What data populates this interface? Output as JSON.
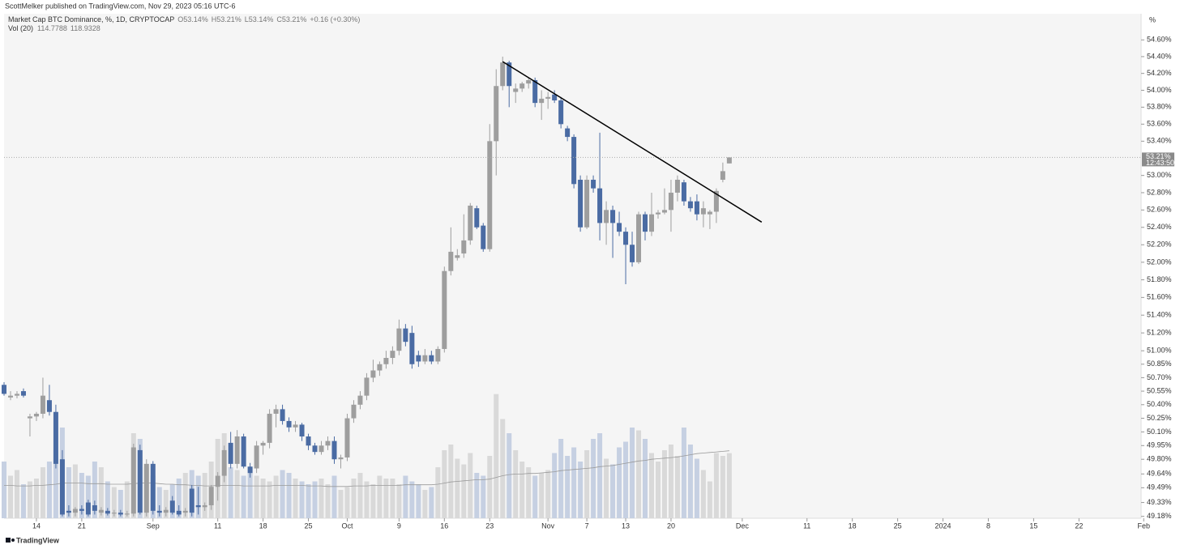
{
  "header": {
    "publisher": "ScottMelker published on TradingView.com, Nov 29, 2023 05:16 UTC-6",
    "brand": "TradingView"
  },
  "chart_data": {
    "type": "candlestick",
    "title": "Market Cap BTC Dominance, %, 1D, CRYPTOCAP",
    "legend_ohlc": [
      "O53.14%",
      "H53.21%",
      "L53.14%",
      "C53.21%",
      "+0.16 (+0.30%)"
    ],
    "volume_legend": {
      "name": "Vol (20)",
      "values": [
        "114.7788",
        "118.9328"
      ]
    },
    "y_unit": "%",
    "log": true,
    "up_color": "#9e9e9e",
    "down_color": "#4a6ba3",
    "volume_up_color": "#d9d9d9",
    "volume_down_color": "#c6d0e2",
    "ma_color": "#9a9a9a",
    "x": [
      "2023-08-09",
      "2023-08-10",
      "2023-08-11",
      "2023-08-12",
      "2023-08-13",
      "2023-08-14",
      "2023-08-15",
      "2023-08-16",
      "2023-08-17",
      "2023-08-18",
      "2023-08-19",
      "2023-08-20",
      "2023-08-21",
      "2023-08-22",
      "2023-08-23",
      "2023-08-24",
      "2023-08-25",
      "2023-08-26",
      "2023-08-27",
      "2023-08-28",
      "2023-08-29",
      "2023-08-30",
      "2023-08-31",
      "2023-09-01",
      "2023-09-02",
      "2023-09-03",
      "2023-09-04",
      "2023-09-05",
      "2023-09-06",
      "2023-09-07",
      "2023-09-08",
      "2023-09-09",
      "2023-09-10",
      "2023-09-11",
      "2023-09-12",
      "2023-09-13",
      "2023-09-14",
      "2023-09-15",
      "2023-09-16",
      "2023-09-17",
      "2023-09-18",
      "2023-09-19",
      "2023-09-20",
      "2023-09-21",
      "2023-09-22",
      "2023-09-23",
      "2023-09-24",
      "2023-09-25",
      "2023-09-26",
      "2023-09-27",
      "2023-09-28",
      "2023-09-29",
      "2023-09-30",
      "2023-10-01",
      "2023-10-02",
      "2023-10-03",
      "2023-10-04",
      "2023-10-05",
      "2023-10-06",
      "2023-10-07",
      "2023-10-08",
      "2023-10-09",
      "2023-10-10",
      "2023-10-11",
      "2023-10-12",
      "2023-10-13",
      "2023-10-14",
      "2023-10-15",
      "2023-10-16",
      "2023-10-17",
      "2023-10-18",
      "2023-10-19",
      "2023-10-20",
      "2023-10-21",
      "2023-10-22",
      "2023-10-23",
      "2023-10-24",
      "2023-10-25",
      "2023-10-26",
      "2023-10-27",
      "2023-10-28",
      "2023-10-29",
      "2023-10-30",
      "2023-10-31",
      "2023-11-01",
      "2023-11-02",
      "2023-11-03",
      "2023-11-04",
      "2023-11-05",
      "2023-11-06",
      "2023-11-07",
      "2023-11-08",
      "2023-11-09",
      "2023-11-10",
      "2023-11-11",
      "2023-11-12",
      "2023-11-13",
      "2023-11-14",
      "2023-11-15",
      "2023-11-16",
      "2023-11-17",
      "2023-11-18",
      "2023-11-19",
      "2023-11-20",
      "2023-11-21",
      "2023-11-22",
      "2023-11-23",
      "2023-11-24",
      "2023-11-25",
      "2023-11-26",
      "2023-11-27",
      "2023-11-28",
      "2023-11-29"
    ],
    "open": [
      50.62,
      50.48,
      50.5,
      50.55,
      50.25,
      50.27,
      50.3,
      50.45,
      50.32,
      49.8,
      49.24,
      49.22,
      49.26,
      49.33,
      49.3,
      49.22,
      49.24,
      49.21,
      49.22,
      49.2,
      49.21,
      49.9,
      49.22,
      49.75,
      49.24,
      49.22,
      49.35,
      49.24,
      49.22,
      49.48,
      49.3,
      49.28,
      49.3,
      49.5,
      49.62,
      49.98,
      49.75,
      50.05,
      49.72,
      49.7,
      49.95,
      49.98,
      50.3,
      50.35,
      50.22,
      50.15,
      50.18,
      50.05,
      49.95,
      49.88,
      49.95,
      50.0,
      49.8,
      49.82,
      50.25,
      50.4,
      50.5,
      50.7,
      50.78,
      50.85,
      50.92,
      51.0,
      51.25,
      51.2,
      50.95,
      50.88,
      50.95,
      50.88,
      51.02,
      51.9,
      52.05,
      52.1,
      52.25,
      52.62,
      52.42,
      52.15,
      53.4,
      54.05,
      54.33,
      53.98,
      54.02,
      54.08,
      54.12,
      53.85,
      53.9,
      53.95,
      53.88,
      53.55,
      53.45,
      52.95,
      52.4,
      52.95,
      52.85,
      52.45,
      52.6,
      52.45,
      52.35,
      52.2,
      52.0,
      52.55,
      52.35,
      52.55,
      52.57,
      52.6,
      52.8,
      52.92,
      52.7,
      52.7,
      52.55,
      52.55,
      52.58,
      52.95,
      53.14
    ],
    "high": [
      50.65,
      50.55,
      50.55,
      50.58,
      50.3,
      50.32,
      50.7,
      50.62,
      50.4,
      49.9,
      49.3,
      49.28,
      49.3,
      49.36,
      49.35,
      49.28,
      49.27,
      49.25,
      49.25,
      49.24,
      49.97,
      49.96,
      49.8,
      49.78,
      49.3,
      49.28,
      49.4,
      49.3,
      49.27,
      49.52,
      49.5,
      49.33,
      49.52,
      49.66,
      49.95,
      50.1,
      50.12,
      50.08,
      49.76,
      50.0,
      50.0,
      50.35,
      50.4,
      50.4,
      50.26,
      50.22,
      50.2,
      50.08,
      49.98,
      50.0,
      50.05,
      50.05,
      49.85,
      50.3,
      50.45,
      50.55,
      50.75,
      50.9,
      50.88,
      51.0,
      51.05,
      51.35,
      51.3,
      51.28,
      51.0,
      51.02,
      51.0,
      51.05,
      51.95,
      52.4,
      52.15,
      52.55,
      52.68,
      52.65,
      52.45,
      53.6,
      54.25,
      54.4,
      54.35,
      54.08,
      54.1,
      54.15,
      54.15,
      54.0,
      53.98,
      54.0,
      53.92,
      53.58,
      53.48,
      53.0,
      53.0,
      53.0,
      53.5,
      52.7,
      52.65,
      52.58,
      52.4,
      52.35,
      52.58,
      52.58,
      52.8,
      52.6,
      52.85,
      52.95,
      53.0,
      52.95,
      52.75,
      52.78,
      52.7,
      52.6,
      52.85,
      53.15,
      53.21
    ],
    "low": [
      50.5,
      50.45,
      50.47,
      50.48,
      50.05,
      50.22,
      50.25,
      50.28,
      49.7,
      49.18,
      49.18,
      49.18,
      49.2,
      49.18,
      49.2,
      49.19,
      49.19,
      49.18,
      49.18,
      49.18,
      49.18,
      49.2,
      49.18,
      49.2,
      49.18,
      49.18,
      49.2,
      49.18,
      49.18,
      49.18,
      49.2,
      49.24,
      49.25,
      49.35,
      49.55,
      49.7,
      49.7,
      49.7,
      49.6,
      49.65,
      49.85,
      49.92,
      50.15,
      50.18,
      50.1,
      50.1,
      50.0,
      49.9,
      49.85,
      49.85,
      49.9,
      49.75,
      49.7,
      49.78,
      50.2,
      50.35,
      50.45,
      50.65,
      50.72,
      50.8,
      50.85,
      50.95,
      51.05,
      50.8,
      50.82,
      50.85,
      50.85,
      50.85,
      50.98,
      51.85,
      52.02,
      52.05,
      52.2,
      52.38,
      52.12,
      52.12,
      53.0,
      54.0,
      53.8,
      53.85,
      53.98,
      54.02,
      53.8,
      53.65,
      53.78,
      53.85,
      53.55,
      53.4,
      52.85,
      52.35,
      52.38,
      52.8,
      52.25,
      52.2,
      52.05,
      52.3,
      51.75,
      51.95,
      51.98,
      52.25,
      52.3,
      52.5,
      52.55,
      52.35,
      52.7,
      52.65,
      52.58,
      52.48,
      52.4,
      52.38,
      52.45,
      52.92,
      53.14
    ],
    "close": [
      50.52,
      50.5,
      50.52,
      50.5,
      50.27,
      50.3,
      50.5,
      50.32,
      49.75,
      49.2,
      49.22,
      49.26,
      49.24,
      49.2,
      49.24,
      49.25,
      49.21,
      49.22,
      49.2,
      49.21,
      49.93,
      49.22,
      49.75,
      49.24,
      49.22,
      49.25,
      49.22,
      49.2,
      49.24,
      49.22,
      49.28,
      49.3,
      49.5,
      49.62,
      49.9,
      49.75,
      50.05,
      49.72,
      49.65,
      49.95,
      49.98,
      50.3,
      50.35,
      50.22,
      50.15,
      50.18,
      50.05,
      49.95,
      49.88,
      49.95,
      50.0,
      49.8,
      49.82,
      50.25,
      50.4,
      50.5,
      50.7,
      50.78,
      50.85,
      50.92,
      51.0,
      51.25,
      51.1,
      50.85,
      50.88,
      50.95,
      50.88,
      51.02,
      51.9,
      52.12,
      52.08,
      52.25,
      52.65,
      52.4,
      52.15,
      53.4,
      54.05,
      54.33,
      54.05,
      54.02,
      54.08,
      54.12,
      53.85,
      53.9,
      53.92,
      53.88,
      53.6,
      53.45,
      52.9,
      52.4,
      52.95,
      52.85,
      52.45,
      52.6,
      52.45,
      52.35,
      52.2,
      52.0,
      52.55,
      52.35,
      52.55,
      52.57,
      52.6,
      52.8,
      52.95,
      52.7,
      52.62,
      52.55,
      52.62,
      52.58,
      52.82,
      53.05,
      53.21
    ],
    "volume": [
      100,
      75,
      85,
      60,
      65,
      70,
      90,
      100,
      120,
      160,
      90,
      95,
      80,
      75,
      100,
      90,
      65,
      55,
      50,
      65,
      150,
      140,
      90,
      75,
      55,
      50,
      60,
      70,
      80,
      85,
      75,
      80,
      100,
      140,
      150,
      90,
      85,
      75,
      80,
      75,
      70,
      65,
      75,
      85,
      80,
      70,
      65,
      60,
      65,
      70,
      60,
      75,
      50,
      55,
      70,
      80,
      65,
      60,
      75,
      70,
      70,
      60,
      75,
      65,
      60,
      50,
      55,
      90,
      120,
      130,
      105,
      95,
      115,
      80,
      75,
      110,
      219,
      175,
      150,
      120,
      100,
      90,
      75,
      80,
      85,
      115,
      140,
      110,
      125,
      100,
      120,
      140,
      150,
      105,
      95,
      125,
      135,
      160,
      155,
      140,
      115,
      100,
      120,
      130,
      110,
      160,
      130,
      105,
      85,
      65,
      115,
      110,
      114.7788
    ],
    "volume_ma": [
      58,
      58,
      57,
      57,
      57,
      58,
      58,
      59,
      60,
      62,
      62,
      62,
      62,
      61,
      61,
      61,
      60,
      60,
      60,
      60,
      61,
      62,
      62,
      62,
      61,
      60,
      60,
      59,
      59,
      58,
      58,
      57,
      57,
      58,
      58,
      58,
      58,
      57,
      57,
      57,
      57,
      57,
      58,
      58,
      58,
      58,
      58,
      57,
      57,
      57,
      56,
      56,
      56,
      56,
      57,
      57,
      57,
      58,
      58,
      58,
      58,
      58,
      59,
      59,
      59,
      59,
      59,
      60,
      62,
      64,
      65,
      66,
      67,
      68,
      68,
      69,
      72,
      75,
      77,
      78,
      78,
      79,
      79,
      80,
      81,
      82,
      84,
      85,
      86,
      87,
      88,
      89,
      91,
      92,
      93,
      95,
      97,
      99,
      101,
      102,
      104,
      105,
      106,
      107,
      108,
      110,
      112,
      114,
      115,
      116,
      117,
      118,
      118.9328
    ],
    "ylim": [
      49.16,
      54.69
    ],
    "yticks": [
      {
        "value": 49.18,
        "label": "49.18%"
      },
      {
        "value": 49.33,
        "label": "49.33%"
      },
      {
        "value": 49.49,
        "label": "49.49%"
      },
      {
        "value": 49.64,
        "label": "49.64%"
      },
      {
        "value": 49.8,
        "label": "49.80%"
      },
      {
        "value": 49.95,
        "label": "49.95%"
      },
      {
        "value": 50.1,
        "label": "50.10%"
      },
      {
        "value": 50.25,
        "label": "50.25%"
      },
      {
        "value": 50.4,
        "label": "50.40%"
      },
      {
        "value": 50.55,
        "label": "50.55%"
      },
      {
        "value": 50.7,
        "label": "50.70%"
      },
      {
        "value": 50.85,
        "label": "50.85%"
      },
      {
        "value": 51.0,
        "label": "51.00%"
      },
      {
        "value": 51.2,
        "label": "51.20%"
      },
      {
        "value": 51.4,
        "label": "51.40%"
      },
      {
        "value": 51.6,
        "label": "51.60%"
      },
      {
        "value": 51.8,
        "label": "51.80%"
      },
      {
        "value": 52.0,
        "label": "52.00%"
      },
      {
        "value": 52.2,
        "label": "52.20%"
      },
      {
        "value": 52.4,
        "label": "52.40%"
      },
      {
        "value": 52.6,
        "label": "52.60%"
      },
      {
        "value": 52.8,
        "label": "52.80%"
      },
      {
        "value": 53.0,
        "label": "53.00%"
      },
      {
        "value": 53.4,
        "label": "53.40%"
      },
      {
        "value": 53.6,
        "label": "53.60%"
      },
      {
        "value": 53.8,
        "label": "53.80%"
      },
      {
        "value": 54.0,
        "label": "54.00%"
      },
      {
        "value": 54.2,
        "label": "54.20%"
      },
      {
        "value": 54.4,
        "label": "54.40%"
      },
      {
        "value": 54.6,
        "label": "54.60%"
      }
    ],
    "xticks": [
      {
        "value": "2023-08-14",
        "label": "14"
      },
      {
        "value": "2023-08-21",
        "label": "21"
      },
      {
        "value": "2023-09-01",
        "label": "Sep"
      },
      {
        "value": "2023-09-11",
        "label": "11"
      },
      {
        "value": "2023-09-18",
        "label": "18"
      },
      {
        "value": "2023-09-25",
        "label": "25"
      },
      {
        "value": "2023-10-01",
        "label": "Oct"
      },
      {
        "value": "2023-10-09",
        "label": "9"
      },
      {
        "value": "2023-10-16",
        "label": "16"
      },
      {
        "value": "2023-10-23",
        "label": "23"
      },
      {
        "value": "2023-11-01",
        "label": "Nov"
      },
      {
        "value": "2023-11-07",
        "label": "7"
      },
      {
        "value": "2023-11-13",
        "label": "13"
      },
      {
        "value": "2023-11-20",
        "label": "20"
      },
      {
        "value": "2023-12-01",
        "label": "Dec"
      },
      {
        "value": "2023-12-11",
        "label": "11"
      },
      {
        "value": "2023-12-18",
        "label": "18"
      },
      {
        "value": "2023-12-25",
        "label": "25"
      },
      {
        "value": "2024-01-01",
        "label": "2024"
      },
      {
        "value": "2024-01-08",
        "label": "8"
      },
      {
        "value": "2024-01-15",
        "label": "15"
      },
      {
        "value": "2024-01-22",
        "label": "22"
      },
      {
        "value": "2024-02-01",
        "label": "Feb"
      }
    ],
    "last_price": {
      "value": 53.21,
      "label": "53.21%",
      "countdown": "12:43:50"
    },
    "trendline": {
      "x": [
        "2023-10-25",
        "2023-12-04"
      ],
      "y": [
        54.34,
        52.46
      ],
      "color": "#000000"
    }
  }
}
